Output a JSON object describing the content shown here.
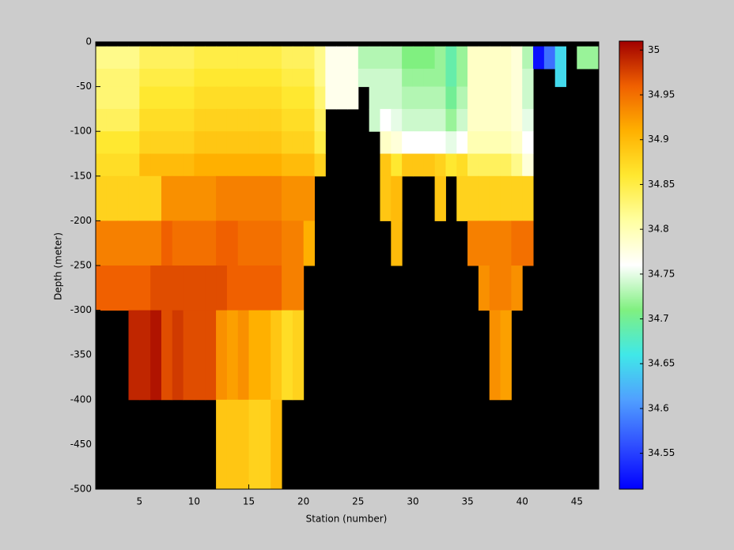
{
  "chart_data": {
    "type": "heatmap",
    "xlabel": "Station (number)",
    "ylabel": "Depth (meter)",
    "x": [
      1,
      2,
      3,
      4,
      5,
      6,
      7,
      8,
      9,
      10,
      11,
      12,
      13,
      14,
      15,
      16,
      17,
      18,
      19,
      20,
      21,
      22,
      23,
      24,
      25,
      26,
      27,
      28,
      29,
      30,
      31,
      32,
      33,
      34,
      35,
      36,
      37,
      38,
      39,
      40,
      41,
      42,
      43,
      44,
      45,
      46,
      47
    ],
    "y": [
      -5,
      -30,
      -50,
      -75,
      -100,
      -125,
      -150,
      -200,
      -250,
      -300,
      -400,
      -500
    ],
    "values": [
      [
        34.82,
        34.82,
        34.82,
        34.82,
        34.84,
        34.84,
        34.84,
        34.84,
        34.84,
        34.85,
        34.85,
        34.85,
        34.85,
        34.85,
        34.85,
        34.85,
        34.85,
        34.84,
        34.84,
        34.84,
        34.82,
        34.77,
        34.77,
        34.77,
        34.73,
        34.73,
        34.73,
        34.73,
        34.71,
        34.71,
        34.71,
        34.72,
        34.69,
        34.72,
        34.79,
        34.79,
        34.79,
        34.79,
        34.78,
        34.73,
        34.52,
        34.58,
        34.65,
        null,
        34.72,
        34.72
      ],
      [
        34.83,
        34.83,
        34.83,
        34.83,
        34.85,
        34.85,
        34.85,
        34.85,
        34.85,
        34.86,
        34.86,
        34.86,
        34.86,
        34.86,
        34.86,
        34.86,
        34.86,
        34.85,
        34.85,
        34.85,
        34.82,
        34.77,
        34.77,
        34.77,
        34.74,
        34.74,
        34.74,
        34.74,
        34.72,
        34.72,
        34.72,
        34.72,
        34.69,
        34.72,
        34.79,
        34.79,
        34.79,
        34.79,
        34.78,
        34.74,
        null,
        null,
        34.65,
        null,
        null,
        null
      ],
      [
        34.83,
        34.83,
        34.83,
        34.83,
        34.86,
        34.86,
        34.86,
        34.86,
        34.86,
        34.87,
        34.87,
        34.87,
        34.87,
        34.87,
        34.87,
        34.87,
        34.87,
        34.86,
        34.86,
        34.86,
        34.83,
        34.77,
        34.77,
        34.77,
        null,
        34.74,
        34.74,
        34.74,
        34.73,
        34.73,
        34.73,
        34.73,
        34.7,
        34.73,
        34.79,
        34.79,
        34.79,
        34.79,
        34.78,
        34.74,
        null,
        null,
        null,
        null,
        null,
        null
      ],
      [
        34.84,
        34.84,
        34.84,
        34.84,
        34.87,
        34.87,
        34.87,
        34.87,
        34.87,
        34.88,
        34.88,
        34.88,
        34.88,
        34.88,
        34.88,
        34.88,
        34.88,
        34.87,
        34.87,
        34.87,
        34.84,
        null,
        null,
        null,
        null,
        34.74,
        34.76,
        34.75,
        34.74,
        34.74,
        34.74,
        34.74,
        34.72,
        34.74,
        34.79,
        34.79,
        34.79,
        34.79,
        34.78,
        34.75,
        null,
        null,
        null,
        null,
        null,
        null
      ],
      [
        34.86,
        34.86,
        34.86,
        34.86,
        34.88,
        34.88,
        34.88,
        34.88,
        34.88,
        34.89,
        34.89,
        34.89,
        34.89,
        34.89,
        34.89,
        34.89,
        34.89,
        34.88,
        34.88,
        34.88,
        34.85,
        null,
        null,
        null,
        null,
        null,
        34.79,
        34.78,
        34.76,
        34.76,
        34.76,
        34.76,
        34.75,
        34.76,
        34.8,
        34.8,
        34.8,
        34.8,
        34.79,
        34.76,
        null,
        null,
        null,
        null,
        null,
        null
      ],
      [
        34.87,
        34.87,
        34.87,
        34.87,
        34.9,
        34.9,
        34.9,
        34.9,
        34.9,
        34.91,
        34.91,
        34.91,
        34.91,
        34.91,
        34.91,
        34.91,
        34.91,
        34.9,
        34.9,
        34.9,
        34.88,
        null,
        null,
        null,
        null,
        null,
        34.89,
        34.86,
        34.89,
        34.89,
        34.89,
        34.88,
        34.86,
        34.87,
        34.84,
        34.84,
        34.84,
        34.84,
        34.82,
        34.78,
        null,
        null,
        null,
        null,
        null,
        null
      ],
      [
        34.88,
        34.88,
        34.88,
        34.88,
        34.88,
        34.88,
        34.93,
        34.93,
        34.93,
        34.93,
        34.93,
        34.94,
        34.94,
        34.94,
        34.94,
        34.94,
        34.94,
        34.93,
        34.93,
        34.93,
        null,
        null,
        null,
        null,
        null,
        null,
        34.89,
        34.9,
        null,
        null,
        null,
        34.89,
        null,
        34.88,
        34.88,
        34.88,
        34.88,
        34.88,
        34.88,
        34.88,
        null,
        null,
        null,
        null,
        null,
        null
      ],
      [
        34.94,
        34.94,
        34.94,
        34.94,
        34.94,
        34.94,
        34.96,
        34.95,
        34.95,
        34.95,
        34.95,
        34.96,
        34.96,
        34.95,
        34.95,
        34.95,
        34.95,
        34.94,
        34.94,
        34.91,
        null,
        null,
        null,
        null,
        null,
        null,
        null,
        34.9,
        null,
        null,
        null,
        null,
        null,
        null,
        34.94,
        34.94,
        34.94,
        34.94,
        34.95,
        34.95,
        null,
        null,
        null,
        null,
        null,
        null
      ],
      [
        34.96,
        34.96,
        34.96,
        34.96,
        34.96,
        34.97,
        34.97,
        34.97,
        34.97,
        34.97,
        34.97,
        34.97,
        34.96,
        34.96,
        34.96,
        34.96,
        34.96,
        34.94,
        34.94,
        null,
        null,
        null,
        null,
        null,
        null,
        null,
        null,
        null,
        null,
        null,
        null,
        null,
        null,
        null,
        null,
        34.93,
        34.94,
        34.94,
        34.93,
        null,
        null,
        null,
        null,
        null,
        null,
        null
      ],
      [
        null,
        null,
        null,
        34.99,
        34.99,
        35.0,
        34.97,
        34.98,
        34.97,
        34.97,
        34.97,
        34.93,
        34.92,
        34.93,
        34.91,
        34.91,
        34.89,
        34.87,
        34.88,
        null,
        null,
        null,
        null,
        null,
        null,
        null,
        null,
        null,
        null,
        null,
        null,
        null,
        null,
        null,
        null,
        null,
        34.93,
        34.92,
        null,
        null,
        null,
        null,
        null,
        null,
        null,
        null
      ],
      [
        null,
        null,
        null,
        null,
        null,
        null,
        null,
        null,
        null,
        null,
        null,
        34.89,
        34.89,
        34.89,
        34.88,
        34.88,
        34.9,
        null,
        null,
        null,
        null,
        null,
        null,
        null,
        null,
        null,
        null,
        null,
        null,
        null,
        null,
        null,
        null,
        null,
        null,
        null,
        null,
        null,
        null,
        null,
        null,
        null,
        null,
        null,
        null,
        null
      ]
    ],
    "xlim": [
      1,
      47
    ],
    "xticks": [
      5,
      10,
      15,
      20,
      25,
      30,
      35,
      40,
      45
    ],
    "ylim": [
      -500,
      0
    ],
    "yticks": [
      -500,
      -450,
      -400,
      -350,
      -300,
      -250,
      -200,
      -150,
      -100,
      -50,
      0
    ],
    "clim": [
      34.51,
      35.01
    ],
    "cticks": [
      34.55,
      34.6,
      34.65,
      34.7,
      34.75,
      34.8,
      34.85,
      34.9,
      34.95,
      35
    ],
    "colormap": [
      "#0000ff",
      "#3050ff",
      "#50a0ff",
      "#40e8e8",
      "#80f080",
      "#ffffff",
      "#ffffa0",
      "#ffe830",
      "#ffb000",
      "#f06000",
      "#a00000"
    ],
    "background": "#000000"
  }
}
